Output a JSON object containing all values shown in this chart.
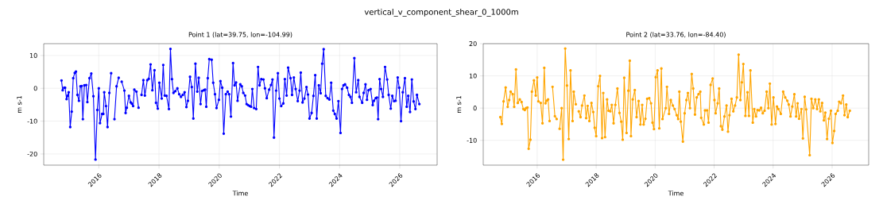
{
  "chart_data": [
    {
      "type": "line",
      "title": "vertical_v_component_shear_0_1000m",
      "subtitle": "Point 1 (lat=39.75, lon=-104.99)",
      "xlabel": "Time",
      "ylabel": "m s-1",
      "xlim": [
        2014.17,
        2027.24
      ],
      "xticks": [
        2016,
        2018,
        2020,
        2022,
        2024,
        2026
      ],
      "ylim": [
        -23.4,
        13.6
      ],
      "yticks": [
        -20,
        -10,
        0,
        10
      ],
      "grid": true,
      "marker": "circle",
      "line_style": "solid",
      "series": [
        {
          "color": "#0000ff",
          "x": [
            2014.76,
            2014.8,
            2014.85,
            2014.88,
            2014.93,
            2014.96,
            2015.0,
            2015.05,
            2015.1,
            2015.15,
            2015.2,
            2015.24,
            2015.29,
            2015.34,
            2015.39,
            2015.43,
            2015.47,
            2015.52,
            2015.58,
            2015.62,
            2015.69,
            2015.75,
            2015.82,
            2015.89,
            2015.95,
            2016.0,
            2016.04,
            2016.11,
            2016.15,
            2016.18,
            2016.24,
            2016.29,
            2016.35,
            2016.41,
            2016.47,
            2016.52,
            2016.59,
            2016.66,
            2016.71,
            2016.76,
            2016.85,
            2016.89,
            2016.93,
            2017.0,
            2017.06,
            2017.1,
            2017.14,
            2017.18,
            2017.25,
            2017.32,
            2017.37,
            2017.42,
            2017.48,
            2017.53,
            2017.61,
            2017.66,
            2017.72,
            2017.78,
            2017.85,
            2017.9,
            2017.96,
            2018.01,
            2018.09,
            2018.14,
            2018.19,
            2018.25,
            2018.33,
            2018.38,
            2018.43,
            2018.48,
            2018.54,
            2018.61,
            2018.67,
            2018.73,
            2018.79,
            2018.85,
            2018.91,
            2018.96,
            2019.03,
            2019.09,
            2019.14,
            2019.21,
            2019.27,
            2019.32,
            2019.38,
            2019.43,
            2019.49,
            2019.53,
            2019.57,
            2019.62,
            2019.67,
            2019.75,
            2019.8,
            2019.86,
            2019.91,
            2019.99,
            2020.04,
            2020.1,
            2020.15,
            2020.22,
            2020.28,
            2020.33,
            2020.39,
            2020.46,
            2020.51,
            2020.56,
            2020.61,
            2020.7,
            2020.75,
            2020.8,
            2020.86,
            2020.91,
            2020.96,
            2021.01,
            2021.06,
            2021.1,
            2021.16,
            2021.23,
            2021.29,
            2021.34,
            2021.4,
            2021.47,
            2021.52,
            2021.58,
            2021.66,
            2021.72,
            2021.77,
            2021.82,
            2021.89,
            2021.95,
            2022.0,
            2022.06,
            2022.13,
            2022.18,
            2022.24,
            2022.29,
            2022.37,
            2022.42,
            2022.48,
            2022.54,
            2022.61,
            2022.67,
            2022.71,
            2022.77,
            2022.83,
            2022.9,
            2022.95,
            2023.0,
            2023.07,
            2023.13,
            2023.19,
            2023.24,
            2023.31,
            2023.37,
            2023.42,
            2023.47,
            2023.54,
            2023.6,
            2023.66,
            2023.72,
            2023.79,
            2023.84,
            2023.9,
            2023.96,
            2024.03,
            2024.08,
            2024.13,
            2024.18,
            2024.25,
            2024.31,
            2024.36,
            2024.41,
            2024.49,
            2024.55,
            2024.62,
            2024.66,
            2024.75,
            2024.8,
            2024.86,
            2024.91,
            2024.96,
            2025.03,
            2025.1,
            2025.14,
            2025.2,
            2025.24,
            2025.28,
            2025.33,
            2025.38,
            2025.44,
            2025.51,
            2025.58,
            2025.63,
            2025.7,
            2025.75,
            2025.81,
            2025.86,
            2025.93,
            2025.98,
            2026.04,
            2026.1,
            2026.17,
            2026.23,
            2026.28,
            2026.34,
            2026.4,
            2026.46,
            2026.52,
            2026.57,
            2026.65
          ],
          "values": [
            2.4,
            -0.6,
            0.2,
            0.2,
            -3.3,
            -2.3,
            -1.2,
            -11.8,
            -7.1,
            3.1,
            4.7,
            5.1,
            -2.0,
            -3.8,
            0.6,
            0.7,
            -9.4,
            0.9,
            1.0,
            -4.2,
            3.1,
            4.5,
            -2.4,
            -21.7,
            -6.6,
            0,
            -10.6,
            -7.8,
            -7.8,
            -1.2,
            -5.4,
            -11.8,
            -1.4,
            4.6,
            null,
            -9.4,
            0.6,
            3.2,
            null,
            2.0,
            -0.7,
            -7.5,
            -5.9,
            -2.3,
            -4.3,
            -4.7,
            -5.4,
            -0.4,
            -1.0,
            -5.9,
            null,
            -2.0,
            2.5,
            -2.2,
            2.5,
            2.9,
            7.3,
            -0.6,
            5.5,
            -4.4,
            -6.2,
            1.7,
            -3.1,
            7.1,
            -2.2,
            -2.3,
            -6.3,
            12.0,
            2.8,
            -1.4,
            -0.9,
            0,
            -1.8,
            -2.6,
            -2.0,
            -1.2,
            -5.7,
            -3.8,
            3.5,
            0.4,
            -9.2,
            7.5,
            -1.0,
            3.2,
            -4.8,
            -0.8,
            -0.6,
            -0.4,
            -5.6,
            3.1,
            8.9,
            8.7,
            1.7,
            -1.8,
            -6.0,
            -3.5,
            2.2,
            0.2,
            -13.8,
            -1.8,
            -1.0,
            -1.8,
            -8.6,
            7.7,
            0.9,
            1.8,
            -3.8,
            1.2,
            0.6,
            -1.4,
            -2.2,
            -4.8,
            -5.1,
            -5.4,
            -5.6,
            -0.2,
            -6.0,
            -6.3,
            6.5,
            0.9,
            2.8,
            2.7,
            0,
            -3.0,
            -0.4,
            1.0,
            2.7,
            -15.0,
            -0.7,
            4.6,
            -3.1,
            -5.4,
            -4.6,
            2.8,
            -2.2,
            6.3,
            3.1,
            -2.0,
            3.3,
            -0.2,
            -3.9,
            -0.7,
            4.8,
            -4.3,
            -3.1,
            0.4,
            -1.9,
            -9.2,
            -7.5,
            -2.3,
            4.0,
            -9.2,
            0.9,
            -1.5,
            7.5,
            11.9,
            -2.3,
            -3.0,
            -3.4,
            1.7,
            -6.8,
            -7.8,
            -9.2,
            -3.9,
            -13.6,
            -0.2,
            0.9,
            1.2,
            0.2,
            -2.0,
            -2.6,
            -4.4,
            9.2,
            -1.2,
            2.5,
            -2.6,
            -4.4,
            -1.4,
            1.2,
            -3.5,
            -0.6,
            -0.2,
            -5.1,
            -3.8,
            -3.0,
            -2.8,
            -9.4,
            2.8,
            -0.2,
            -2.6,
            6.5,
            2.7,
            -2.0,
            -6.2,
            -2.3,
            -3.9,
            -3.8,
            3.3,
            0.2,
            -10.0,
            -1.2,
            3.1,
            -5.6,
            -2.3,
            -7.2,
            2.7,
            -4.0,
            -6.3,
            -2.0,
            -4.8
          ]
        }
      ]
    },
    {
      "type": "line",
      "subtitle": "Point 2 (lat=33.76, lon=-84.40)",
      "xlabel": "Time",
      "ylabel": "m s-1",
      "xlim": [
        2014.17,
        2027.24
      ],
      "xticks": [
        2016,
        2018,
        2020,
        2022,
        2024,
        2026
      ],
      "ylim": [
        -17.7,
        20
      ],
      "yticks": [
        -10,
        0,
        10,
        20
      ],
      "grid": true,
      "marker": "circle",
      "line_style": "solid",
      "series": [
        {
          "color": "#ffa500",
          "x": [
            2014.75,
            2014.8,
            2014.86,
            2014.93,
            2015.0,
            2015.05,
            2015.1,
            2015.17,
            2015.22,
            2015.28,
            2015.34,
            2015.41,
            2015.47,
            2015.53,
            2015.58,
            2015.62,
            2015.67,
            2015.71,
            2015.77,
            2015.82,
            2015.89,
            2015.95,
            2016.0,
            2016.04,
            2016.12,
            2016.18,
            2016.24,
            2016.28,
            2016.32,
            2016.37,
            2016.42,
            2016.47,
            2016.52,
            2016.6,
            2016.66,
            2016.71,
            2016.76,
            2016.83,
            2016.88,
            2016.95,
            2017.01,
            2017.07,
            2017.13,
            2017.2,
            2017.24,
            2017.31,
            2017.36,
            2017.41,
            2017.47,
            2017.52,
            2017.6,
            2017.66,
            2017.71,
            2017.77,
            2017.84,
            2017.9,
            2017.95,
            2018.0,
            2018.07,
            2018.13,
            2018.2,
            2018.24,
            2018.3,
            2018.37,
            2018.42,
            2018.48,
            2018.53,
            2018.59,
            2018.65,
            2018.72,
            2018.79,
            2018.85,
            2018.9,
            2018.95,
            2019.03,
            2019.09,
            2019.14,
            2019.18,
            2019.24,
            2019.31,
            2019.37,
            2019.44,
            2019.5,
            2019.56,
            2019.61,
            2019.67,
            2019.73,
            2019.8,
            2019.86,
            2019.91,
            2019.96,
            2020.02,
            2020.08,
            2020.14,
            2020.21,
            2020.25,
            2020.36,
            2020.4,
            2020.47,
            2020.53,
            2020.6,
            2020.66,
            2020.73,
            2020.78,
            2020.82,
            2020.87,
            2020.94,
            2021.0,
            2021.06,
            2021.11,
            2021.18,
            2021.24,
            2021.29,
            2021.35,
            2021.41,
            2021.47,
            2021.53,
            2021.56,
            2021.65,
            2021.69,
            2021.76,
            2021.81,
            2021.88,
            2021.95,
            2022.01,
            2022.05,
            2022.12,
            2022.17,
            2022.23,
            2022.28,
            2022.35,
            2022.42,
            2022.47,
            2022.52,
            2022.59,
            2022.65,
            2022.71,
            2022.77,
            2022.83,
            2022.89,
            2022.94,
            2022.99,
            2023.06,
            2023.13,
            2023.18,
            2023.23,
            2023.31,
            2023.36,
            2023.42,
            2023.47,
            2023.53,
            2023.59,
            2023.65,
            2023.71,
            2023.78,
            2023.84,
            2023.89,
            2023.95,
            2024.01,
            2024.08,
            2024.13,
            2024.18,
            2024.26,
            2024.34,
            2024.41,
            2024.48,
            2024.53,
            2024.59,
            2024.65,
            2024.72,
            2024.78,
            2024.83,
            2024.88,
            2024.96,
            2025.01,
            2025.07,
            2025.12,
            2025.24,
            2025.3,
            2025.36,
            2025.43,
            2025.49,
            2025.55,
            2025.6,
            2025.66,
            2025.72,
            2025.77,
            2025.83,
            2025.89,
            2025.96,
            2026.01,
            2026.07,
            2026.12,
            2026.19,
            2026.24,
            2026.3,
            2026.37,
            2026.42,
            2026.48,
            2026.53,
            2026.6
          ],
          "values": [
            -2.8,
            -4.9,
            2.1,
            6.4,
            0.4,
            2.5,
            5.1,
            4.3,
            0.4,
            12.0,
            1.6,
            2.7,
            1.9,
            -0.3,
            -0.6,
            0,
            0.2,
            -12.6,
            -9.8,
            5.1,
            8.6,
            3.9,
            9.5,
            2.1,
            1.6,
            -4.7,
            12.5,
            1.5,
            2.3,
            2.7,
            -4.0,
            null,
            6.6,
            -2.5,
            -3.4,
            null,
            -6.4,
            0,
            -16.0,
            18.5,
            7.0,
            -9.6,
            11.7,
            -4.0,
            5.1,
            1.2,
            null,
            -1.0,
            -2.8,
            0.8,
            3.9,
            -3.1,
            0.7,
            -4.0,
            1.6,
            -1.2,
            -6.1,
            -8.7,
            6.8,
            10.0,
            -9.3,
            4.7,
            -9.0,
            2.7,
            -0.8,
            -1.0,
            1.0,
            -4.7,
            1.0,
            6.1,
            -1.5,
            -4.2,
            -9.8,
            9.4,
            -7.7,
            5.4,
            14.7,
            -8.7,
            2.7,
            5.6,
            -2.8,
            2.2,
            -5.1,
            1.0,
            -5.1,
            -3.3,
            2.9,
            3.1,
            1.5,
            -4.5,
            -6.5,
            9.6,
            11.7,
            -6.3,
            12.3,
            -3.4,
            0,
            6.6,
            -1.8,
            2.5,
            0.8,
            -0.3,
            -2.2,
            -3.4,
            5.1,
            -4.2,
            -10.4,
            -1.6,
            2.5,
            4.7,
            0,
            10.6,
            6.1,
            -2.0,
            3.3,
            4.3,
            5.1,
            -3.0,
            -5.1,
            -0.7,
            -0.7,
            -4.5,
            7.2,
            9.2,
            2.5,
            -1.6,
            1.5,
            6.1,
            -5.6,
            -6.7,
            -2.6,
            0.8,
            -7.3,
            -2.2,
            2.9,
            -1.0,
            0.8,
            3.3,
            16.6,
            2.5,
            8.0,
            13.7,
            -2.4,
            4.9,
            -2.4,
            11.7,
            -4.5,
            -0.3,
            -2.6,
            -0.6,
            -0.7,
            0.1,
            -1.6,
            -0.8,
            5.1,
            0,
            7.6,
            -5.1,
            3.3,
            -4.9,
            0.5,
            -0.3,
            -1.8,
            5.1,
            3.3,
            2.3,
            1.1,
            -2.6,
            0.5,
            4.3,
            -2.6,
            1.5,
            -3.3,
            -0.3,
            -9.4,
            3.5,
            -0.4,
            -14.6,
            2.9,
            0,
            2.7,
            -0.3,
            2.7,
            -1.0,
            1.6,
            -3.8,
            -1.4,
            -9.6,
            -3.3,
            -0.8,
            -10.8,
            -7.1,
            -1.8,
            -0.8,
            2.0,
            1.5,
            3.9,
            -2.2,
            1.1,
            -2.8,
            -0.8
          ]
        }
      ]
    }
  ]
}
